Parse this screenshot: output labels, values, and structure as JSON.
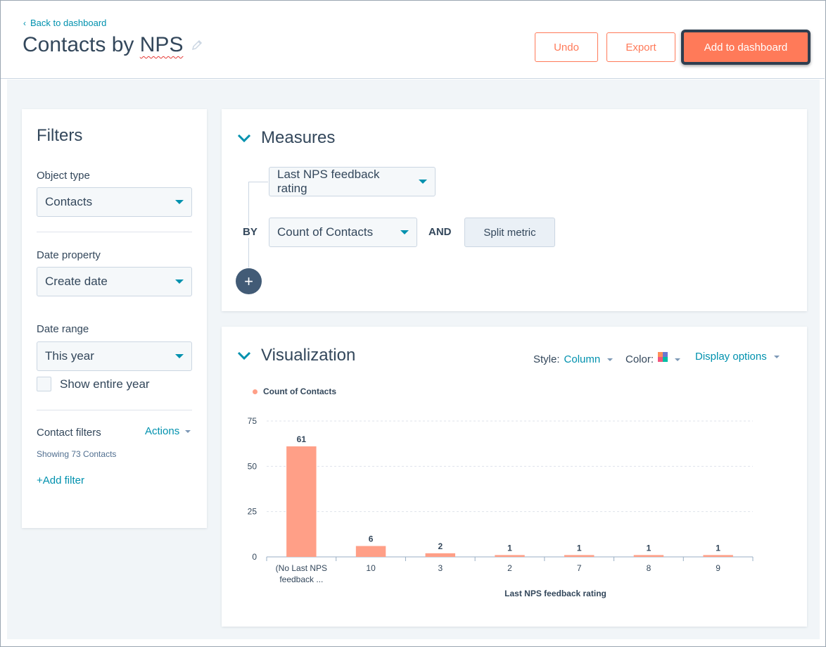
{
  "header": {
    "back_label": "Back to dashboard",
    "title_main": "Contacts by",
    "title_word": "NPS",
    "undo_label": "Undo",
    "export_label": "Export",
    "add_label": "Add to dashboard"
  },
  "filters": {
    "heading": "Filters",
    "object_type_label": "Object type",
    "object_type_value": "Contacts",
    "date_property_label": "Date property",
    "date_property_value": "Create date",
    "date_range_label": "Date range",
    "date_range_value": "This year",
    "show_entire_year_label": "Show entire year",
    "contact_filters_label": "Contact filters",
    "actions_label": "Actions",
    "showing_text": "Showing 73 Contacts",
    "add_filter_label": "+Add filter"
  },
  "measures": {
    "heading": "Measures",
    "dimension_value": "Last NPS feedback rating",
    "by_label": "BY",
    "metric_value": "Count of Contacts",
    "and_label": "AND",
    "split_label": "Split metric",
    "add_icon": "+"
  },
  "visualization": {
    "heading": "Visualization",
    "style_label": "Style:",
    "style_value": "Column",
    "color_label": "Color:",
    "display_options_label": "Display options",
    "palette_colors": [
      "#ff8f59",
      "#6a78d1",
      "#f2547d",
      "#00bda5"
    ],
    "bar_color": "#ff9f87"
  },
  "chart_data": {
    "type": "bar",
    "series": [
      {
        "name": "Count of Contacts",
        "values": [
          61,
          6,
          2,
          1,
          1,
          1,
          1
        ]
      }
    ],
    "categories": [
      [
        "(No Last NPS",
        "feedback ..."
      ],
      [
        "10"
      ],
      [
        "3"
      ],
      [
        "2"
      ],
      [
        "7"
      ],
      [
        "8"
      ],
      [
        "9"
      ]
    ],
    "data_labels": [
      "61",
      "6",
      "2",
      "1",
      "1",
      "1",
      "1"
    ],
    "xlabel": "Last NPS feedback rating",
    "ylabel": "",
    "yticks": [
      0,
      25,
      50,
      75
    ],
    "ylim": [
      0,
      75
    ],
    "grid": true,
    "legend_position": "top-left"
  }
}
